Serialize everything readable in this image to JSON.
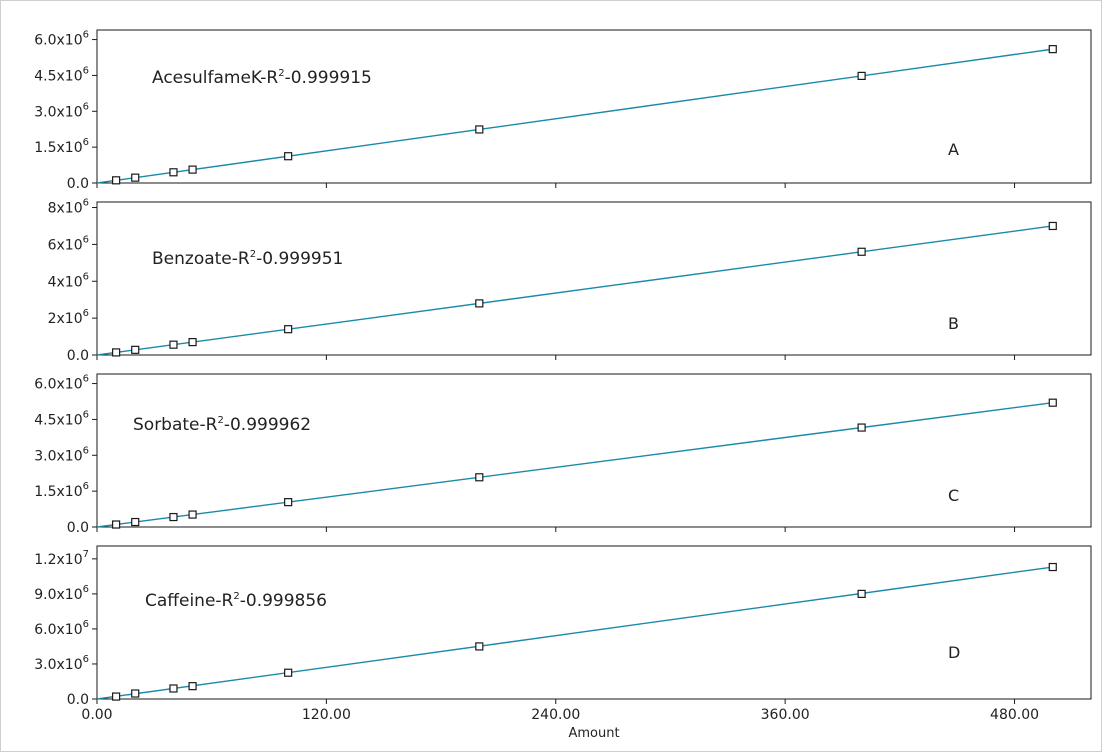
{
  "chart_data": [
    {
      "type": "scatter",
      "panel": "A",
      "title": "AcesulfameK-R",
      "title_sup": "2",
      "title_tail": "-0.999915",
      "x": [
        10,
        20,
        40,
        50,
        100,
        200,
        400,
        500
      ],
      "y": [
        112000,
        224000,
        448000,
        560000,
        1120000,
        2240000,
        4480000,
        5600000
      ],
      "fit": {
        "x0": 0,
        "y0": 0,
        "x1": 500,
        "y1": 5600000
      },
      "xlim": [
        0,
        520
      ],
      "ylim": [
        0,
        6400000
      ],
      "yticks": [
        {
          "v": 0,
          "m": "0.0",
          "e": ""
        },
        {
          "v": 1500000,
          "m": "1.5x10",
          "e": "6"
        },
        {
          "v": 3000000,
          "m": "3.0x10",
          "e": "6"
        },
        {
          "v": 4500000,
          "m": "4.5x10",
          "e": "6"
        },
        {
          "v": 6000000,
          "m": "6.0x10",
          "e": "6"
        }
      ]
    },
    {
      "type": "scatter",
      "panel": "B",
      "title": "Benzoate-R",
      "title_sup": "2",
      "title_tail": "-0.999951",
      "x": [
        10,
        20,
        40,
        50,
        100,
        200,
        400,
        500
      ],
      "y": [
        140000,
        280000,
        560000,
        700000,
        1400000,
        2800000,
        5600000,
        7000000
      ],
      "fit": {
        "x0": 0,
        "y0": 0,
        "x1": 500,
        "y1": 7000000
      },
      "xlim": [
        0,
        520
      ],
      "ylim": [
        0,
        8300000
      ],
      "yticks": [
        {
          "v": 0,
          "m": "0.0",
          "e": ""
        },
        {
          "v": 2000000,
          "m": "2x10",
          "e": "6"
        },
        {
          "v": 4000000,
          "m": "4x10",
          "e": "6"
        },
        {
          "v": 6000000,
          "m": "6x10",
          "e": "6"
        },
        {
          "v": 8000000,
          "m": "8x10",
          "e": "6"
        }
      ]
    },
    {
      "type": "scatter",
      "panel": "C",
      "title": "Sorbate-R",
      "title_sup": "2",
      "title_tail": "-0.999962",
      "x": [
        10,
        20,
        40,
        50,
        100,
        200,
        400,
        500
      ],
      "y": [
        104000,
        208000,
        416000,
        520000,
        1040000,
        2080000,
        4160000,
        5200000
      ],
      "fit": {
        "x0": 0,
        "y0": 0,
        "x1": 500,
        "y1": 5200000
      },
      "xlim": [
        0,
        520
      ],
      "ylim": [
        0,
        6400000
      ],
      "yticks": [
        {
          "v": 0,
          "m": "0.0",
          "e": ""
        },
        {
          "v": 1500000,
          "m": "1.5x10",
          "e": "6"
        },
        {
          "v": 3000000,
          "m": "3.0x10",
          "e": "6"
        },
        {
          "v": 4500000,
          "m": "4.5x10",
          "e": "6"
        },
        {
          "v": 6000000,
          "m": "6.0x10",
          "e": "6"
        }
      ]
    },
    {
      "type": "scatter",
      "panel": "D",
      "title": "Caffeine-R",
      "title_sup": "2",
      "title_tail": "-0.999856",
      "x": [
        10,
        20,
        40,
        50,
        100,
        200,
        400,
        500
      ],
      "y": [
        210000,
        470000,
        900000,
        1100000,
        2250000,
        4500000,
        9000000,
        11300000
      ],
      "fit": {
        "x0": 0,
        "y0": 0,
        "x1": 500,
        "y1": 11300000
      },
      "xlim": [
        0,
        520
      ],
      "ylim": [
        0,
        13100000
      ],
      "yticks": [
        {
          "v": 0,
          "m": "0.0",
          "e": ""
        },
        {
          "v": 3000000,
          "m": "3.0x10",
          "e": "6"
        },
        {
          "v": 6000000,
          "m": "6.0x10",
          "e": "6"
        },
        {
          "v": 9000000,
          "m": "9.0x10",
          "e": "6"
        },
        {
          "v": 12000000,
          "m": "1.2x10",
          "e": "7"
        }
      ]
    }
  ],
  "x_axis": {
    "label": "Amount",
    "ticks": [
      {
        "v": 0,
        "label": "0.00"
      },
      {
        "v": 120,
        "label": "120.00"
      },
      {
        "v": 240,
        "label": "240.00"
      },
      {
        "v": 360,
        "label": "360.00"
      },
      {
        "v": 480,
        "label": "480.00"
      }
    ]
  },
  "colors": {
    "line": "#1a8aa8",
    "marker": "#1a1a1a",
    "axes": "#1a1a1a",
    "border": "#cfcfcf"
  }
}
